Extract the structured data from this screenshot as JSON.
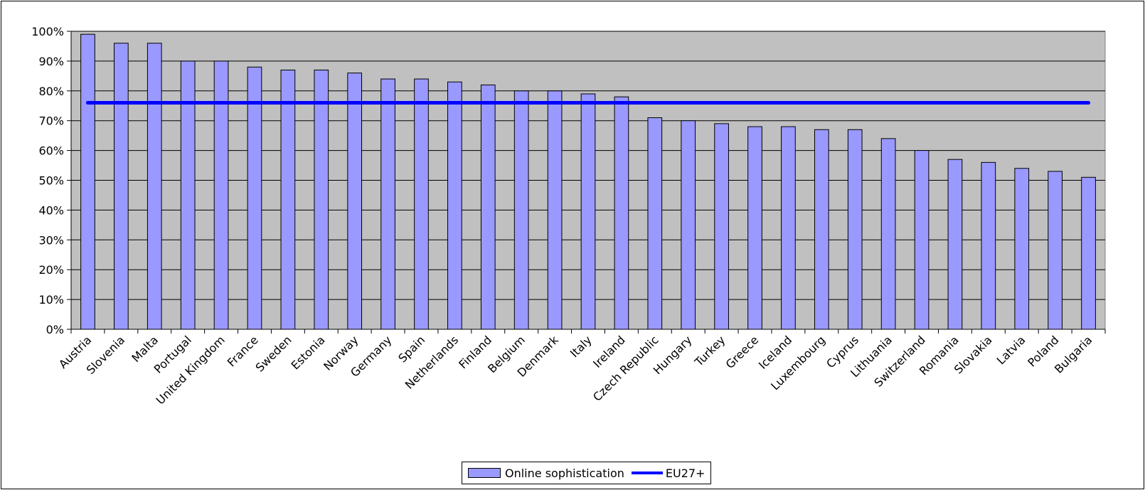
{
  "chart_data": {
    "type": "bar",
    "categories": [
      "Austria",
      "Slovenia",
      "Malta",
      "Portugal",
      "United Kingdom",
      "France",
      "Sweden",
      "Estonia",
      "Norway",
      "Germany",
      "Spain",
      "Netherlands",
      "Finland",
      "Belgium",
      "Denmark",
      "Italy",
      "Ireland",
      "Czech Republic",
      "Hungary",
      "Turkey",
      "Greece",
      "Iceland",
      "Luxembourg",
      "Cyprus",
      "Lithuania",
      "Switzerland",
      "Romania",
      "Slovakia",
      "Latvia",
      "Poland",
      "Bulgaria"
    ],
    "series": [
      {
        "name": "Online sophistication",
        "type": "bar",
        "color": "#9999ff",
        "values": [
          99,
          96,
          96,
          90,
          90,
          88,
          87,
          87,
          86,
          84,
          84,
          83,
          82,
          80,
          80,
          79,
          78,
          71,
          70,
          69,
          68,
          68,
          67,
          67,
          64,
          60,
          57,
          56,
          54,
          53,
          51
        ]
      },
      {
        "name": "EU27+",
        "type": "line",
        "color": "#0000ff",
        "value": 76
      }
    ],
    "ylim": [
      0,
      100
    ],
    "y_ticks": [
      "0%",
      "10%",
      "20%",
      "30%",
      "40%",
      "50%",
      "60%",
      "70%",
      "80%",
      "90%",
      "100%"
    ],
    "grid": true,
    "plot_background": "#c0c0c0",
    "legend_position": "bottom"
  }
}
